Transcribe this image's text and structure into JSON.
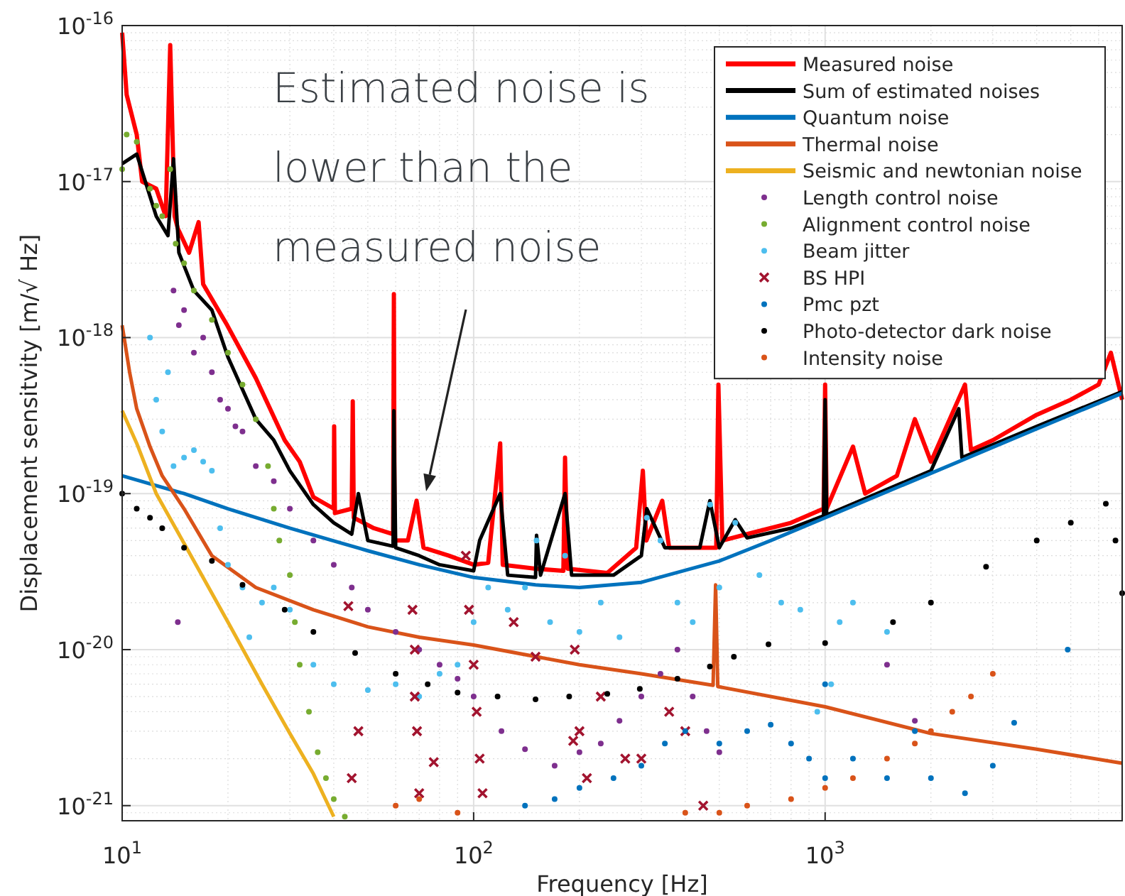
{
  "chart_data": {
    "type": "line",
    "xlabel": "Frequency [Hz]",
    "ylabel": "Displacement sensitvity [m/√ Hz]",
    "log": "xy",
    "grid": true,
    "legend": "top right",
    "xlim": [
      10,
      7000
    ],
    "ylim": [
      8e-22,
      1e-16
    ],
    "xticks": [
      {
        "value": 10,
        "label": "10$^{1}$"
      },
      {
        "value": 100,
        "label": "10$^{2}$"
      },
      {
        "value": 1000,
        "label": "10$^{3}$"
      }
    ],
    "yticks": [
      {
        "value": 1e-21,
        "label": "10$^{-21}$"
      },
      {
        "value": 1e-20,
        "label": "10$^{-20}$"
      },
      {
        "value": 1e-19,
        "label": "10$^{-19}$"
      },
      {
        "value": 1e-18,
        "label": "10$^{-18}$"
      },
      {
        "value": 1e-17,
        "label": "10$^{-17}$"
      },
      {
        "value": 1e-16,
        "label": "10$^{-16}$"
      }
    ],
    "annotations": [
      "Estimated noise is lower than the measured noise"
    ],
    "series": [
      {
        "name": "Measured noise",
        "color": "#ff0000",
        "x": [
          10,
          10.3,
          11,
          11.4,
          12.5,
          13.3,
          13.7,
          14.1,
          14.4,
          15.5,
          16.5,
          17,
          19.9,
          24,
          29,
          32,
          35,
          40,
          40.1,
          40.3,
          45,
          45.3,
          45.6,
          52,
          59,
          59.3,
          59.6,
          65,
          68.8,
          72,
          85,
          100,
          110,
          119,
          121,
          150,
          180,
          182,
          185,
          240,
          290,
          303,
          310,
          344,
          360,
          420,
          490,
          497,
          510,
          600,
          800,
          990,
          1000,
          1010,
          1200,
          1300,
          1600,
          1800,
          2000,
          2500,
          2600,
          3000,
          4000,
          5000,
          6000,
          6500,
          7000
        ],
        "values": [
          9e-17,
          3.6e-17,
          2e-17,
          1e-17,
          9e-18,
          6e-18,
          7.5e-17,
          6e-18,
          5e-18,
          3.5e-18,
          5.5e-18,
          2.2e-18,
          1.2e-18,
          5.5e-19,
          2.2e-19,
          1.6e-19,
          9.5e-20,
          8e-20,
          2.7e-19,
          7.5e-20,
          8e-20,
          3.9e-19,
          7e-20,
          6e-20,
          5.5e-20,
          1.9e-18,
          5e-20,
          5e-20,
          9e-20,
          4.5e-20,
          4e-20,
          3.5e-20,
          3.6e-20,
          2.1e-19,
          3.5e-20,
          3.3e-20,
          3.2e-20,
          1.7e-19,
          3.3e-20,
          3.1e-20,
          4.5e-20,
          1.4e-19,
          5e-20,
          9e-20,
          4.5e-20,
          4.5e-20,
          4.5e-20,
          5e-19,
          5e-20,
          5.5e-20,
          6.5e-20,
          8e-20,
          5e-19,
          8e-20,
          2e-19,
          1e-19,
          1.3e-19,
          3e-19,
          1.6e-19,
          5e-19,
          1.9e-19,
          2.2e-19,
          3.2e-19,
          4e-19,
          5e-19,
          8e-19,
          4e-19
        ]
      },
      {
        "name": "Sum of estimated noises",
        "color": "#000000",
        "x": [
          10,
          11,
          12.5,
          13.5,
          14,
          14.5,
          16,
          18,
          20,
          24,
          27,
          30,
          35,
          40,
          45,
          47,
          50,
          59,
          59.3,
          60,
          70,
          80,
          100,
          104,
          119,
          125,
          150,
          151,
          155,
          182,
          190,
          250,
          300,
          311,
          350,
          440,
          470,
          500,
          555,
          600,
          800,
          990,
          1000,
          1010,
          2000,
          2400,
          2450,
          4000,
          7000
        ],
        "values": [
          1.3e-17,
          1.5e-17,
          6e-18,
          4.5e-18,
          1.4e-17,
          3.5e-18,
          2e-18,
          1.5e-18,
          7.5e-19,
          3e-19,
          2.2e-19,
          1.4e-19,
          8.5e-20,
          6.5e-20,
          5.5e-20,
          1e-19,
          5e-20,
          4.6e-20,
          3.4e-19,
          4.5e-20,
          4e-20,
          3.5e-20,
          3.2e-20,
          5e-20,
          1e-19,
          3e-20,
          2.9e-20,
          5.4e-20,
          3e-20,
          1e-19,
          3e-20,
          3e-20,
          4e-20,
          8e-20,
          4.5e-20,
          4.5e-20,
          9e-20,
          4.5e-20,
          6.8e-20,
          5.2e-20,
          6e-20,
          7.2e-20,
          4e-19,
          7.3e-20,
          1.4e-19,
          3.5e-19,
          1.7e-19,
          2.7e-19,
          4.5e-19
        ]
      },
      {
        "name": "Quantum noise",
        "color": "#0072bd",
        "x": [
          10,
          15,
          20,
          30,
          50,
          70,
          100,
          150,
          200,
          300,
          500,
          700,
          1000,
          2000,
          4000,
          7000
        ],
        "values": [
          1.3e-19,
          1e-19,
          8e-20,
          6e-20,
          4.3e-20,
          3.5e-20,
          2.9e-20,
          2.6e-20,
          2.5e-20,
          2.7e-20,
          3.7e-20,
          5e-20,
          7e-20,
          1.35e-19,
          2.6e-19,
          4.4e-19
        ]
      },
      {
        "name": "Thermal noise",
        "color": "#d95319",
        "x": [
          10,
          10.5,
          11,
          12,
          13,
          15,
          18,
          24,
          35,
          50,
          70,
          100,
          200,
          300,
          480,
          488,
          495,
          1000,
          2000,
          4000,
          7000
        ],
        "values": [
          1.2e-18,
          6e-19,
          3.5e-19,
          2e-19,
          1.3e-19,
          8e-20,
          4e-20,
          2.5e-20,
          1.8e-20,
          1.4e-20,
          1.2e-20,
          1.07e-20,
          8e-21,
          7e-21,
          5.9e-21,
          2.6e-20,
          5.8e-21,
          4.3e-21,
          2.9e-21,
          2.3e-21,
          1.87e-21
        ]
      },
      {
        "name": "Seismic and newtonian noise",
        "color": "#edb120",
        "x": [
          10,
          11,
          12.5,
          15,
          20,
          25,
          30,
          35,
          40
        ],
        "values": [
          3.4e-19,
          2.1e-19,
          1e-19,
          4.8e-20,
          1.5e-20,
          6e-21,
          2.9e-21,
          1.6e-21,
          8.5e-22
        ]
      },
      {
        "name": "Length control noise",
        "type": "scatter",
        "marker": "circle",
        "color": "#7e2f8e",
        "x": [
          14,
          14.4,
          14.5,
          15,
          16,
          17,
          18,
          19,
          20,
          21,
          22,
          24,
          27,
          30,
          35,
          40,
          45,
          50,
          60,
          70,
          80,
          90,
          100,
          120,
          140,
          170,
          200,
          230,
          260,
          300,
          340,
          380,
          420,
          460,
          500,
          1500,
          1800
        ],
        "values": [
          2e-18,
          1.5e-20,
          1.2e-18,
          1.5e-18,
          8e-19,
          1e-18,
          6e-19,
          4e-19,
          3.5e-19,
          2.7e-19,
          2.5e-19,
          1.5e-19,
          1.2e-19,
          8e-20,
          5e-20,
          3.5e-20,
          2.5e-20,
          1.8e-20,
          1.3e-20,
          1e-20,
          8e-21,
          6.5e-21,
          5e-21,
          3e-21,
          2.3e-21,
          1.8e-21,
          2.2e-21,
          2.5e-21,
          3.5e-21,
          5e-21,
          7e-21,
          1e-20,
          5e-21,
          3e-21,
          2.2e-21,
          8e-21,
          3.5e-21
        ]
      },
      {
        "name": "Alignment control noise",
        "type": "scatter",
        "marker": "circle",
        "color": "#77ac30",
        "x": [
          10,
          10.3,
          11,
          12,
          12.5,
          13,
          13.7,
          14.2,
          15,
          16,
          18,
          20,
          22,
          24,
          26,
          27,
          28,
          30,
          31,
          32,
          34,
          36,
          38,
          40,
          43
        ],
        "values": [
          1.2e-17,
          2e-17,
          1.8e-17,
          9e-18,
          7e-18,
          6e-18,
          1.2e-17,
          4e-18,
          3e-18,
          2e-18,
          1.3e-18,
          8e-19,
          5e-19,
          3e-19,
          1.5e-19,
          8e-20,
          5e-20,
          3e-20,
          1.5e-20,
          8e-21,
          4e-21,
          2.2e-21,
          1.5e-21,
          1.1e-21,
          8.5e-22
        ]
      },
      {
        "name": "Beam jitter",
        "type": "scatter",
        "marker": "circle",
        "color": "#4dbeee",
        "x": [
          12,
          12.5,
          13,
          13.5,
          14,
          15,
          16,
          17,
          18,
          19,
          20,
          22,
          23,
          25,
          27,
          30,
          35,
          40,
          50,
          60,
          70,
          80,
          90,
          100,
          110,
          125,
          140,
          151,
          165,
          182,
          200,
          230,
          260,
          311,
          340,
          380,
          420,
          471,
          500,
          555,
          650,
          750,
          850,
          950,
          1040,
          1100,
          1200,
          1500
        ],
        "values": [
          1e-18,
          4e-19,
          2.5e-19,
          6e-19,
          1.5e-19,
          1.7e-19,
          1.9e-19,
          1.6e-19,
          1.4e-19,
          6e-20,
          3.5e-20,
          2.5e-20,
          1.2e-20,
          2e-20,
          2.5e-20,
          1.8e-20,
          8e-21,
          6e-21,
          5.5e-21,
          6e-21,
          5e-21,
          7e-21,
          8e-21,
          1.5e-20,
          2.5e-20,
          1.8e-20,
          2.5e-20,
          5e-20,
          1.5e-20,
          4e-20,
          1.3e-20,
          2e-20,
          1.2e-20,
          7e-20,
          5e-20,
          2e-20,
          1.5e-20,
          8.5e-20,
          2.5e-20,
          6.5e-20,
          3e-20,
          2e-20,
          1.8e-20,
          4e-21,
          6e-21,
          1.5e-20,
          2e-20,
          1.3e-20
        ]
      },
      {
        "name": "BS HPI",
        "type": "scatter",
        "marker": "cross",
        "color": "#a2142f",
        "x": [
          44,
          45,
          47,
          67,
          68,
          68,
          69,
          70,
          77,
          95,
          97,
          100,
          102,
          104,
          106,
          130,
          150,
          192,
          194,
          200,
          210,
          230,
          270,
          300,
          360,
          400,
          450
        ],
        "values": [
          1.9e-20,
          1.5e-21,
          3e-21,
          1.8e-20,
          1e-20,
          5e-21,
          3e-21,
          1.2e-21,
          1.9e-21,
          4e-20,
          1.8e-20,
          8e-21,
          4e-21,
          2e-21,
          1.2e-21,
          1.5e-20,
          9e-21,
          2.6e-21,
          1e-20,
          3e-21,
          1.5e-21,
          5e-21,
          2e-21,
          2e-21,
          4e-21,
          3e-21,
          1e-21
        ]
      },
      {
        "name": "Pmc pzt",
        "type": "scatter",
        "marker": "circle",
        "color": "#0072bd",
        "x": [
          140,
          170,
          200,
          250,
          300,
          350,
          400,
          500,
          600,
          700,
          800,
          900,
          1000,
          1000,
          1200,
          1500,
          1800,
          2000,
          2500,
          3000,
          3450,
          4900
        ],
        "values": [
          1e-21,
          1.1e-21,
          1.3e-21,
          1.5e-21,
          1.8e-21,
          2.5e-21,
          3e-21,
          2.5e-21,
          3e-21,
          3.3e-21,
          2.5e-21,
          2e-21,
          1.5e-21,
          6e-21,
          2e-21,
          1.5e-21,
          3e-21,
          1.5e-21,
          1.2e-21,
          1.8e-21,
          3.4e-21,
          1e-20
        ]
      },
      {
        "name": "Photo-detector dark noise",
        "type": "scatter",
        "marker": "circle",
        "color": "#000000",
        "x": [
          10,
          11,
          12,
          13,
          15,
          18,
          22,
          29,
          35,
          46,
          60,
          74,
          90,
          117,
          150,
          187,
          240,
          297,
          380,
          470,
          550,
          690,
          1000,
          1560,
          2000,
          2870,
          4000,
          5000,
          6290,
          6700,
          7000
        ],
        "values": [
          1e-19,
          8e-20,
          7e-20,
          6e-20,
          4.5e-20,
          3.7e-20,
          2.6e-20,
          1.8e-20,
          1.3e-20,
          9.5e-21,
          7e-21,
          6e-21,
          5.3e-21,
          5e-21,
          4.8e-21,
          5e-21,
          5.2e-21,
          5.6e-21,
          6.5e-21,
          7.8e-21,
          9e-21,
          1.08e-20,
          1.1e-20,
          1.5e-20,
          2e-20,
          3.4e-20,
          5e-20,
          6.5e-20,
          8.6e-20,
          5e-20,
          2.3e-20
        ]
      },
      {
        "name": "Intensity noise",
        "type": "scatter",
        "marker": "circle",
        "color": "#d95319",
        "x": [
          60,
          70,
          90,
          400,
          500,
          600,
          800,
          1000,
          1200,
          1500,
          1800,
          2000,
          2300,
          2600,
          3000
        ],
        "values": [
          1e-21,
          1.1e-21,
          9e-22,
          9e-22,
          9e-22,
          1e-21,
          1.1e-21,
          1.3e-21,
          1.5e-21,
          2e-21,
          2.5e-21,
          3e-21,
          4e-21,
          5e-21,
          7e-21
        ]
      }
    ]
  }
}
